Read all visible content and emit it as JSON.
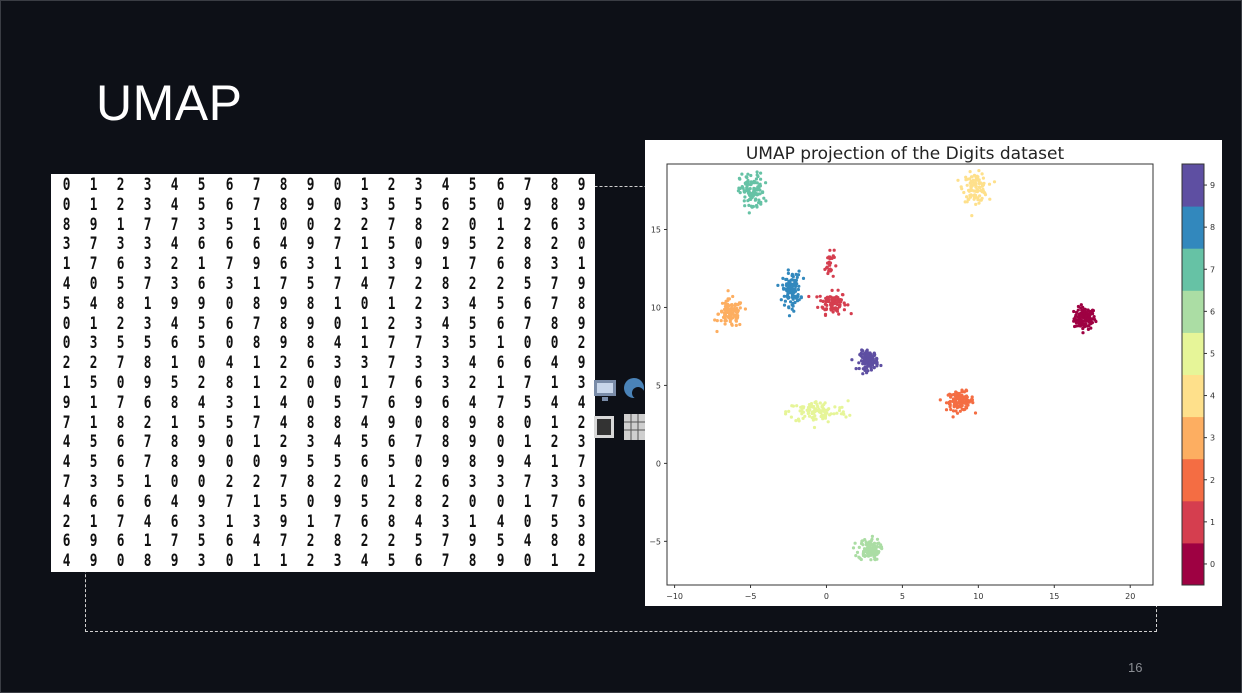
{
  "slide": {
    "title": "UMAP",
    "page_number": "16"
  },
  "digits_image": {
    "rows": [
      "01234567890123456789",
      "01234567890355650989",
      "89177351002278201263",
      "37334666497150952820",
      "17632179631139176831",
      "40573631757472822579",
      "54819908981012345678",
      "01234567890123456789",
      "03556508984177351002",
      "22781041263373346649",
      "15095281200176321713",
      "91768431405769647544",
      "71821557488490898012",
      "45678901234567890123",
      "45678900955650989417",
      "73510022782012633733",
      "46664971509528200176",
      "21746313917684314053",
      "69617564728225795488",
      "49089301123456789012"
    ]
  },
  "chart_data": {
    "type": "scatter",
    "title": "UMAP projection of the Digits dataset",
    "xlim": [
      -10.5,
      21.5
    ],
    "ylim": [
      -7.8,
      19.2
    ],
    "xticks": [
      -10,
      -5,
      0,
      5,
      10,
      15,
      20
    ],
    "yticks": [
      -5,
      0,
      5,
      10,
      15
    ],
    "colorbar": {
      "ticks": [
        "0",
        "1",
        "2",
        "3",
        "4",
        "5",
        "6",
        "7",
        "8",
        "9"
      ],
      "colors": [
        "#9e0142",
        "#d53e4f",
        "#f46d43",
        "#fdae61",
        "#fee08b",
        "#e6f598",
        "#abdda4",
        "#66c2a5",
        "#3288bd",
        "#5e4fa2"
      ]
    },
    "clusters": [
      {
        "label": "0",
        "cx": 17.0,
        "cy": 9.3,
        "sx": 0.35,
        "sy": 0.35,
        "n": 120
      },
      {
        "label": "1",
        "cx": 0.4,
        "cy": 10.3,
        "sx": 0.45,
        "sy": 0.35,
        "n": 90
      },
      {
        "label": "1",
        "cx": 0.2,
        "cy": 12.8,
        "sx": 0.15,
        "sy": 0.5,
        "n": 30
      },
      {
        "label": "2",
        "cx": 8.8,
        "cy": 4.0,
        "sx": 0.45,
        "sy": 0.3,
        "n": 110
      },
      {
        "label": "3",
        "cx": -6.3,
        "cy": 9.6,
        "sx": 0.4,
        "sy": 0.45,
        "n": 110
      },
      {
        "label": "4",
        "cx": 9.8,
        "cy": 17.7,
        "sx": 0.4,
        "sy": 0.45,
        "n": 110
      },
      {
        "label": "5",
        "cx": -0.6,
        "cy": 3.3,
        "sx": 1.0,
        "sy": 0.35,
        "n": 110
      },
      {
        "label": "6",
        "cx": 2.8,
        "cy": -5.5,
        "sx": 0.35,
        "sy": 0.35,
        "n": 110
      },
      {
        "label": "7",
        "cx": -4.9,
        "cy": 17.4,
        "sx": 0.4,
        "sy": 0.6,
        "n": 110
      },
      {
        "label": "8",
        "cx": -2.3,
        "cy": 11.2,
        "sx": 0.3,
        "sy": 0.55,
        "n": 110
      },
      {
        "label": "9",
        "cx": 2.8,
        "cy": 6.6,
        "sx": 0.3,
        "sy": 0.3,
        "n": 110
      }
    ]
  }
}
